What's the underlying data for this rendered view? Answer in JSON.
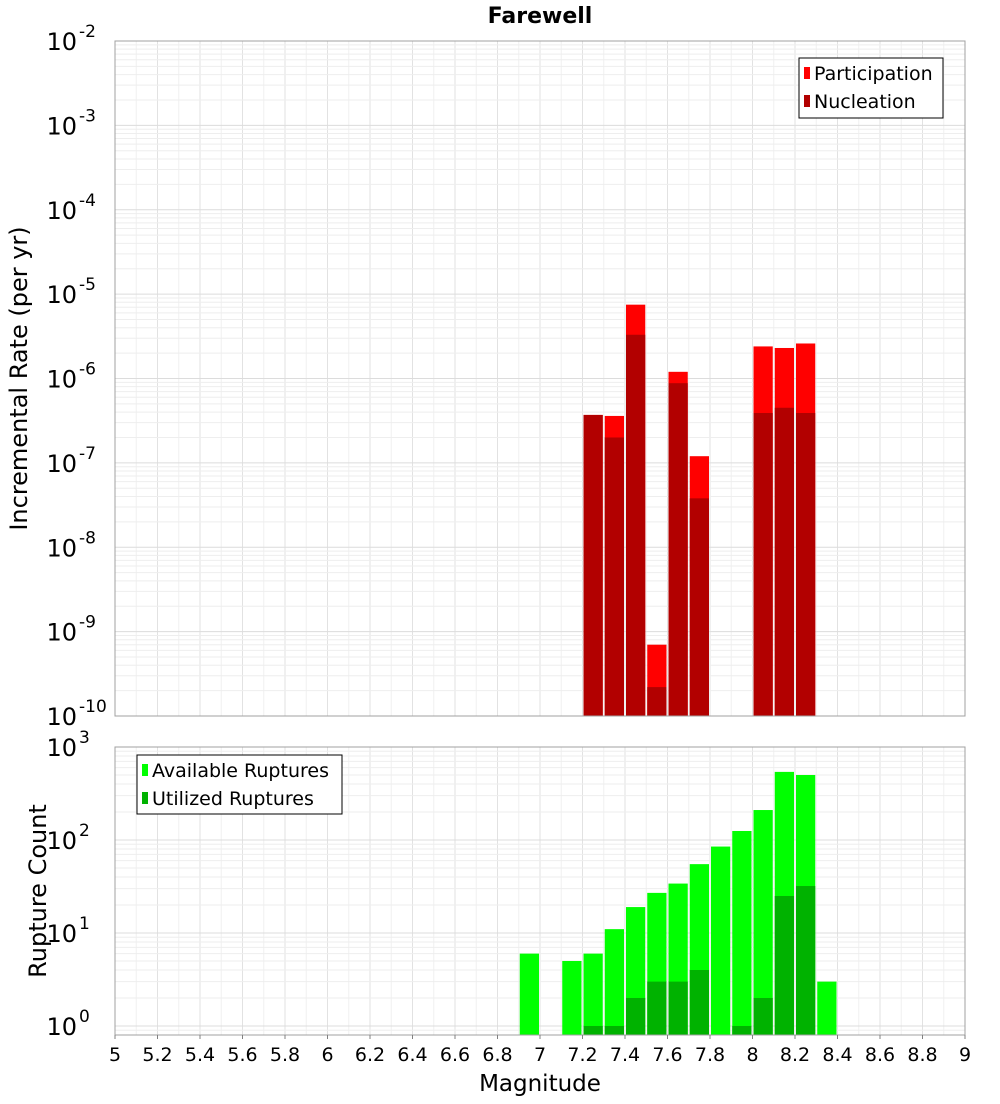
{
  "chart_data": [
    {
      "type": "bar",
      "title": "Farewell",
      "ylabel": "Incremental Rate (per yr)",
      "xlabel": "",
      "yscale": "log",
      "ylim": [
        1e-10,
        0.01
      ],
      "xlim": [
        5,
        9
      ],
      "y_ticks": [
        {
          "base": "10",
          "exp": "-2"
        },
        {
          "base": "10",
          "exp": "-3"
        },
        {
          "base": "10",
          "exp": "-4"
        },
        {
          "base": "10",
          "exp": "-5"
        },
        {
          "base": "10",
          "exp": "-6"
        },
        {
          "base": "10",
          "exp": "-7"
        },
        {
          "base": "10",
          "exp": "-8"
        },
        {
          "base": "10",
          "exp": "-9"
        },
        {
          "base": "10",
          "exp": "-10"
        }
      ],
      "legend": {
        "placement": "top-right"
      },
      "grid": true,
      "series": [
        {
          "name": "Participation",
          "color": "#ff0000",
          "x": [
            7.25,
            7.35,
            7.45,
            7.55,
            7.65,
            7.75,
            8.05,
            8.15,
            8.25
          ],
          "values": [
            3.7e-07,
            3.6e-07,
            7.5e-06,
            7e-10,
            1.2e-06,
            1.2e-07,
            2.4e-06,
            2.3e-06,
            2.6e-06
          ]
        },
        {
          "name": "Nucleation",
          "color": "#b20000",
          "x": [
            7.25,
            7.35,
            7.45,
            7.55,
            7.65,
            7.75,
            8.05,
            8.15,
            8.25
          ],
          "values": [
            3.7e-07,
            2e-07,
            3.3e-06,
            2.2e-10,
            8.8e-07,
            3.8e-08,
            3.9e-07,
            4.5e-07,
            3.9e-07
          ]
        }
      ]
    },
    {
      "type": "bar",
      "title": "",
      "ylabel": "Rupture Count",
      "xlabel": "Magnitude",
      "yscale": "log",
      "ylim": [
        0.8,
        1000
      ],
      "xlim": [
        5,
        9
      ],
      "x_ticks": [
        "5",
        "5.2",
        "5.4",
        "5.6",
        "5.8",
        "6",
        "6.2",
        "6.4",
        "6.6",
        "6.8",
        "7",
        "7.2",
        "7.4",
        "7.6",
        "7.8",
        "8",
        "8.2",
        "8.4",
        "8.6",
        "8.8",
        "9"
      ],
      "y_ticks": [
        {
          "base": "10",
          "exp": "3"
        },
        {
          "base": "10",
          "exp": "2"
        },
        {
          "base": "10",
          "exp": "1"
        },
        {
          "base": "10",
          "exp": "0"
        }
      ],
      "legend": {
        "placement": "top-left"
      },
      "grid": true,
      "series": [
        {
          "name": "Available Ruptures",
          "color": "#00ff00",
          "x": [
            6.95,
            7.15,
            7.25,
            7.35,
            7.45,
            7.55,
            7.65,
            7.75,
            7.85,
            7.95,
            8.05,
            8.15,
            8.25,
            8.35
          ],
          "values": [
            6,
            5,
            6,
            11,
            19,
            27,
            34,
            55,
            85,
            125,
            210,
            540,
            500,
            3
          ]
        },
        {
          "name": "Utilized Ruptures",
          "color": "#00b200",
          "x": [
            7.25,
            7.35,
            7.45,
            7.55,
            7.65,
            7.75,
            7.95,
            8.05,
            8.15,
            8.25
          ],
          "values": [
            1,
            1,
            2,
            3,
            3,
            4,
            1,
            2,
            25,
            32
          ]
        }
      ]
    }
  ]
}
